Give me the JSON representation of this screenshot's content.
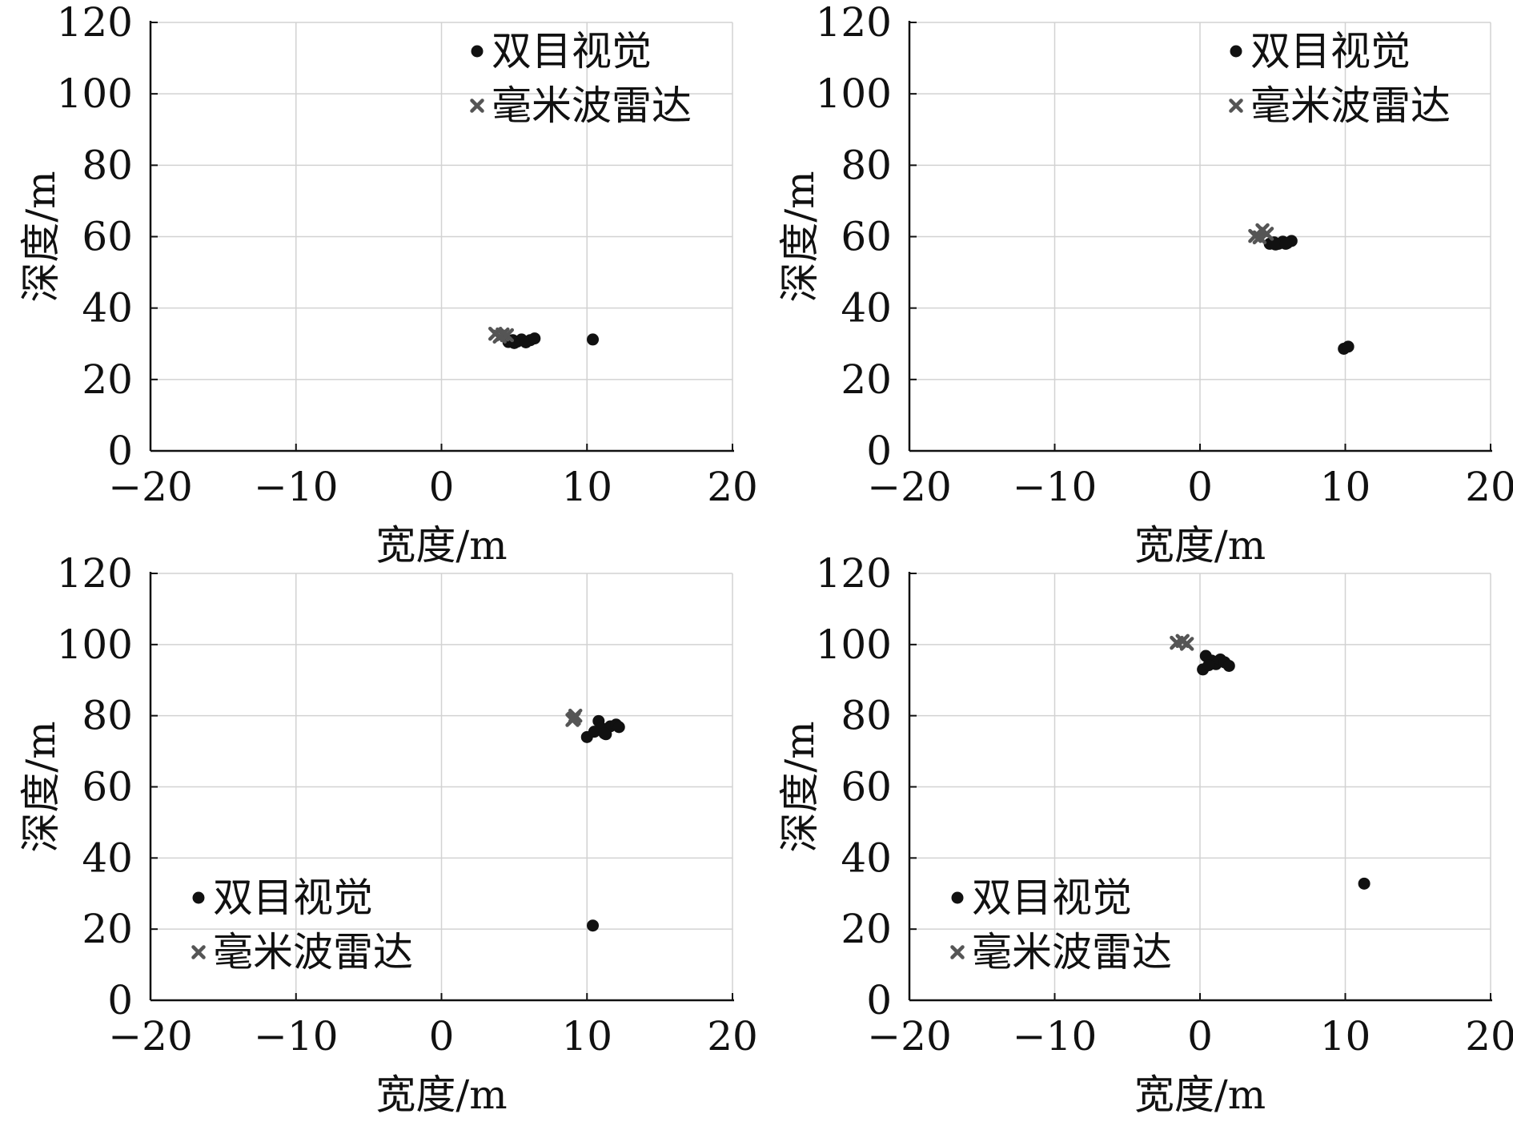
{
  "chart_data": [
    {
      "type": "scatter",
      "xlabel": "宽度/m",
      "ylabel": "深度/m",
      "xlim": [
        -20,
        20
      ],
      "ylim": [
        0,
        120
      ],
      "xticks": [
        -20,
        -10,
        0,
        10,
        20
      ],
      "yticks": [
        0,
        20,
        40,
        60,
        80,
        100,
        120
      ],
      "xtick_labels": [
        "−20",
        "−10",
        "0",
        "10",
        "20"
      ],
      "ytick_labels": [
        "0",
        "20",
        "40",
        "60",
        "80",
        "100",
        "120"
      ],
      "grid": true,
      "legend_position": "top-right",
      "series": [
        {
          "name": "双目视觉",
          "marker": "dot",
          "color": "#111111",
          "points": [
            [
              4.6,
              30.5
            ],
            [
              4.9,
              31.0
            ],
            [
              5.2,
              30.6
            ],
            [
              5.5,
              31.2
            ],
            [
              5.8,
              30.4
            ],
            [
              6.1,
              31.0
            ],
            [
              6.4,
              31.5
            ],
            [
              5.0,
              30.2
            ],
            [
              10.4,
              31.2
            ]
          ]
        },
        {
          "name": "毫米波雷达",
          "marker": "x",
          "color": "#555555",
          "points": [
            [
              3.7,
              32.8
            ],
            [
              4.2,
              32.6
            ],
            [
              4.5,
              32.4
            ],
            [
              4.0,
              32.0
            ]
          ]
        }
      ]
    },
    {
      "type": "scatter",
      "xlabel": "宽度/m",
      "ylabel": "深度/m",
      "xlim": [
        -20,
        20
      ],
      "ylim": [
        0,
        120
      ],
      "xticks": [
        -20,
        -10,
        0,
        10,
        20
      ],
      "yticks": [
        0,
        20,
        40,
        60,
        80,
        100,
        120
      ],
      "xtick_labels": [
        "−20",
        "−10",
        "0",
        "10",
        "20"
      ],
      "ytick_labels": [
        "0",
        "20",
        "40",
        "60",
        "80",
        "100",
        "120"
      ],
      "grid": true,
      "legend_position": "top-right",
      "series": [
        {
          "name": "双目视觉",
          "marker": "dot",
          "color": "#111111",
          "points": [
            [
              4.8,
              58.0
            ],
            [
              5.1,
              58.4
            ],
            [
              5.4,
              58.0
            ],
            [
              5.7,
              58.6
            ],
            [
              6.0,
              58.2
            ],
            [
              6.3,
              58.8
            ],
            [
              5.2,
              57.8
            ],
            [
              5.9,
              58.0
            ],
            [
              9.9,
              28.6
            ],
            [
              10.2,
              29.2
            ]
          ]
        },
        {
          "name": "毫米波雷达",
          "marker": "x",
          "color": "#555555",
          "points": [
            [
              3.8,
              60.2
            ],
            [
              4.3,
              61.8
            ],
            [
              4.1,
              59.8
            ],
            [
              4.6,
              60.8
            ]
          ]
        }
      ]
    },
    {
      "type": "scatter",
      "xlabel": "宽度/m",
      "ylabel": "深度/m",
      "xlim": [
        -20,
        20
      ],
      "ylim": [
        0,
        120
      ],
      "xticks": [
        -20,
        -10,
        0,
        10,
        20
      ],
      "yticks": [
        0,
        20,
        40,
        60,
        80,
        100,
        120
      ],
      "xtick_labels": [
        "−20",
        "−10",
        "0",
        "10",
        "20"
      ],
      "ytick_labels": [
        "0",
        "20",
        "40",
        "60",
        "80",
        "100",
        "120"
      ],
      "grid": true,
      "legend_position": "bottom-left",
      "series": [
        {
          "name": "双目视觉",
          "marker": "dot",
          "color": "#111111",
          "points": [
            [
              10.0,
              74.0
            ],
            [
              10.5,
              75.5
            ],
            [
              10.8,
              78.5
            ],
            [
              11.0,
              76.5
            ],
            [
              11.3,
              74.8
            ],
            [
              11.6,
              77.0
            ],
            [
              12.0,
              77.5
            ],
            [
              12.2,
              76.8
            ],
            [
              11.2,
              75.0
            ],
            [
              10.4,
              21.0
            ]
          ]
        },
        {
          "name": "毫米波雷达",
          "marker": "x",
          "color": "#555555",
          "points": [
            [
              9.0,
              78.8
            ],
            [
              9.2,
              80.0
            ],
            [
              9.1,
              79.2
            ]
          ]
        }
      ]
    },
    {
      "type": "scatter",
      "xlabel": "宽度/m",
      "ylabel": "深度/m",
      "xlim": [
        -20,
        20
      ],
      "ylim": [
        0,
        120
      ],
      "xticks": [
        -20,
        -10,
        0,
        10,
        20
      ],
      "yticks": [
        0,
        20,
        40,
        60,
        80,
        100,
        120
      ],
      "xtick_labels": [
        "−20",
        "−10",
        "0",
        "10",
        "20"
      ],
      "ytick_labels": [
        "0",
        "20",
        "40",
        "60",
        "80",
        "100",
        "120"
      ],
      "grid": true,
      "legend_position": "bottom-left",
      "series": [
        {
          "name": "双目视觉",
          "marker": "dot",
          "color": "#111111",
          "points": [
            [
              0.2,
              93.0
            ],
            [
              0.4,
              96.8
            ],
            [
              0.8,
              95.5
            ],
            [
              1.1,
              94.5
            ],
            [
              1.4,
              95.8
            ],
            [
              1.7,
              95.0
            ],
            [
              2.0,
              94.0
            ],
            [
              0.6,
              94.2
            ],
            [
              11.3,
              32.8
            ]
          ]
        },
        {
          "name": "毫米波雷达",
          "marker": "x",
          "color": "#555555",
          "points": [
            [
              -1.6,
              100.5
            ],
            [
              -1.2,
              101.0
            ],
            [
              -0.9,
              100.2
            ]
          ]
        }
      ]
    }
  ]
}
